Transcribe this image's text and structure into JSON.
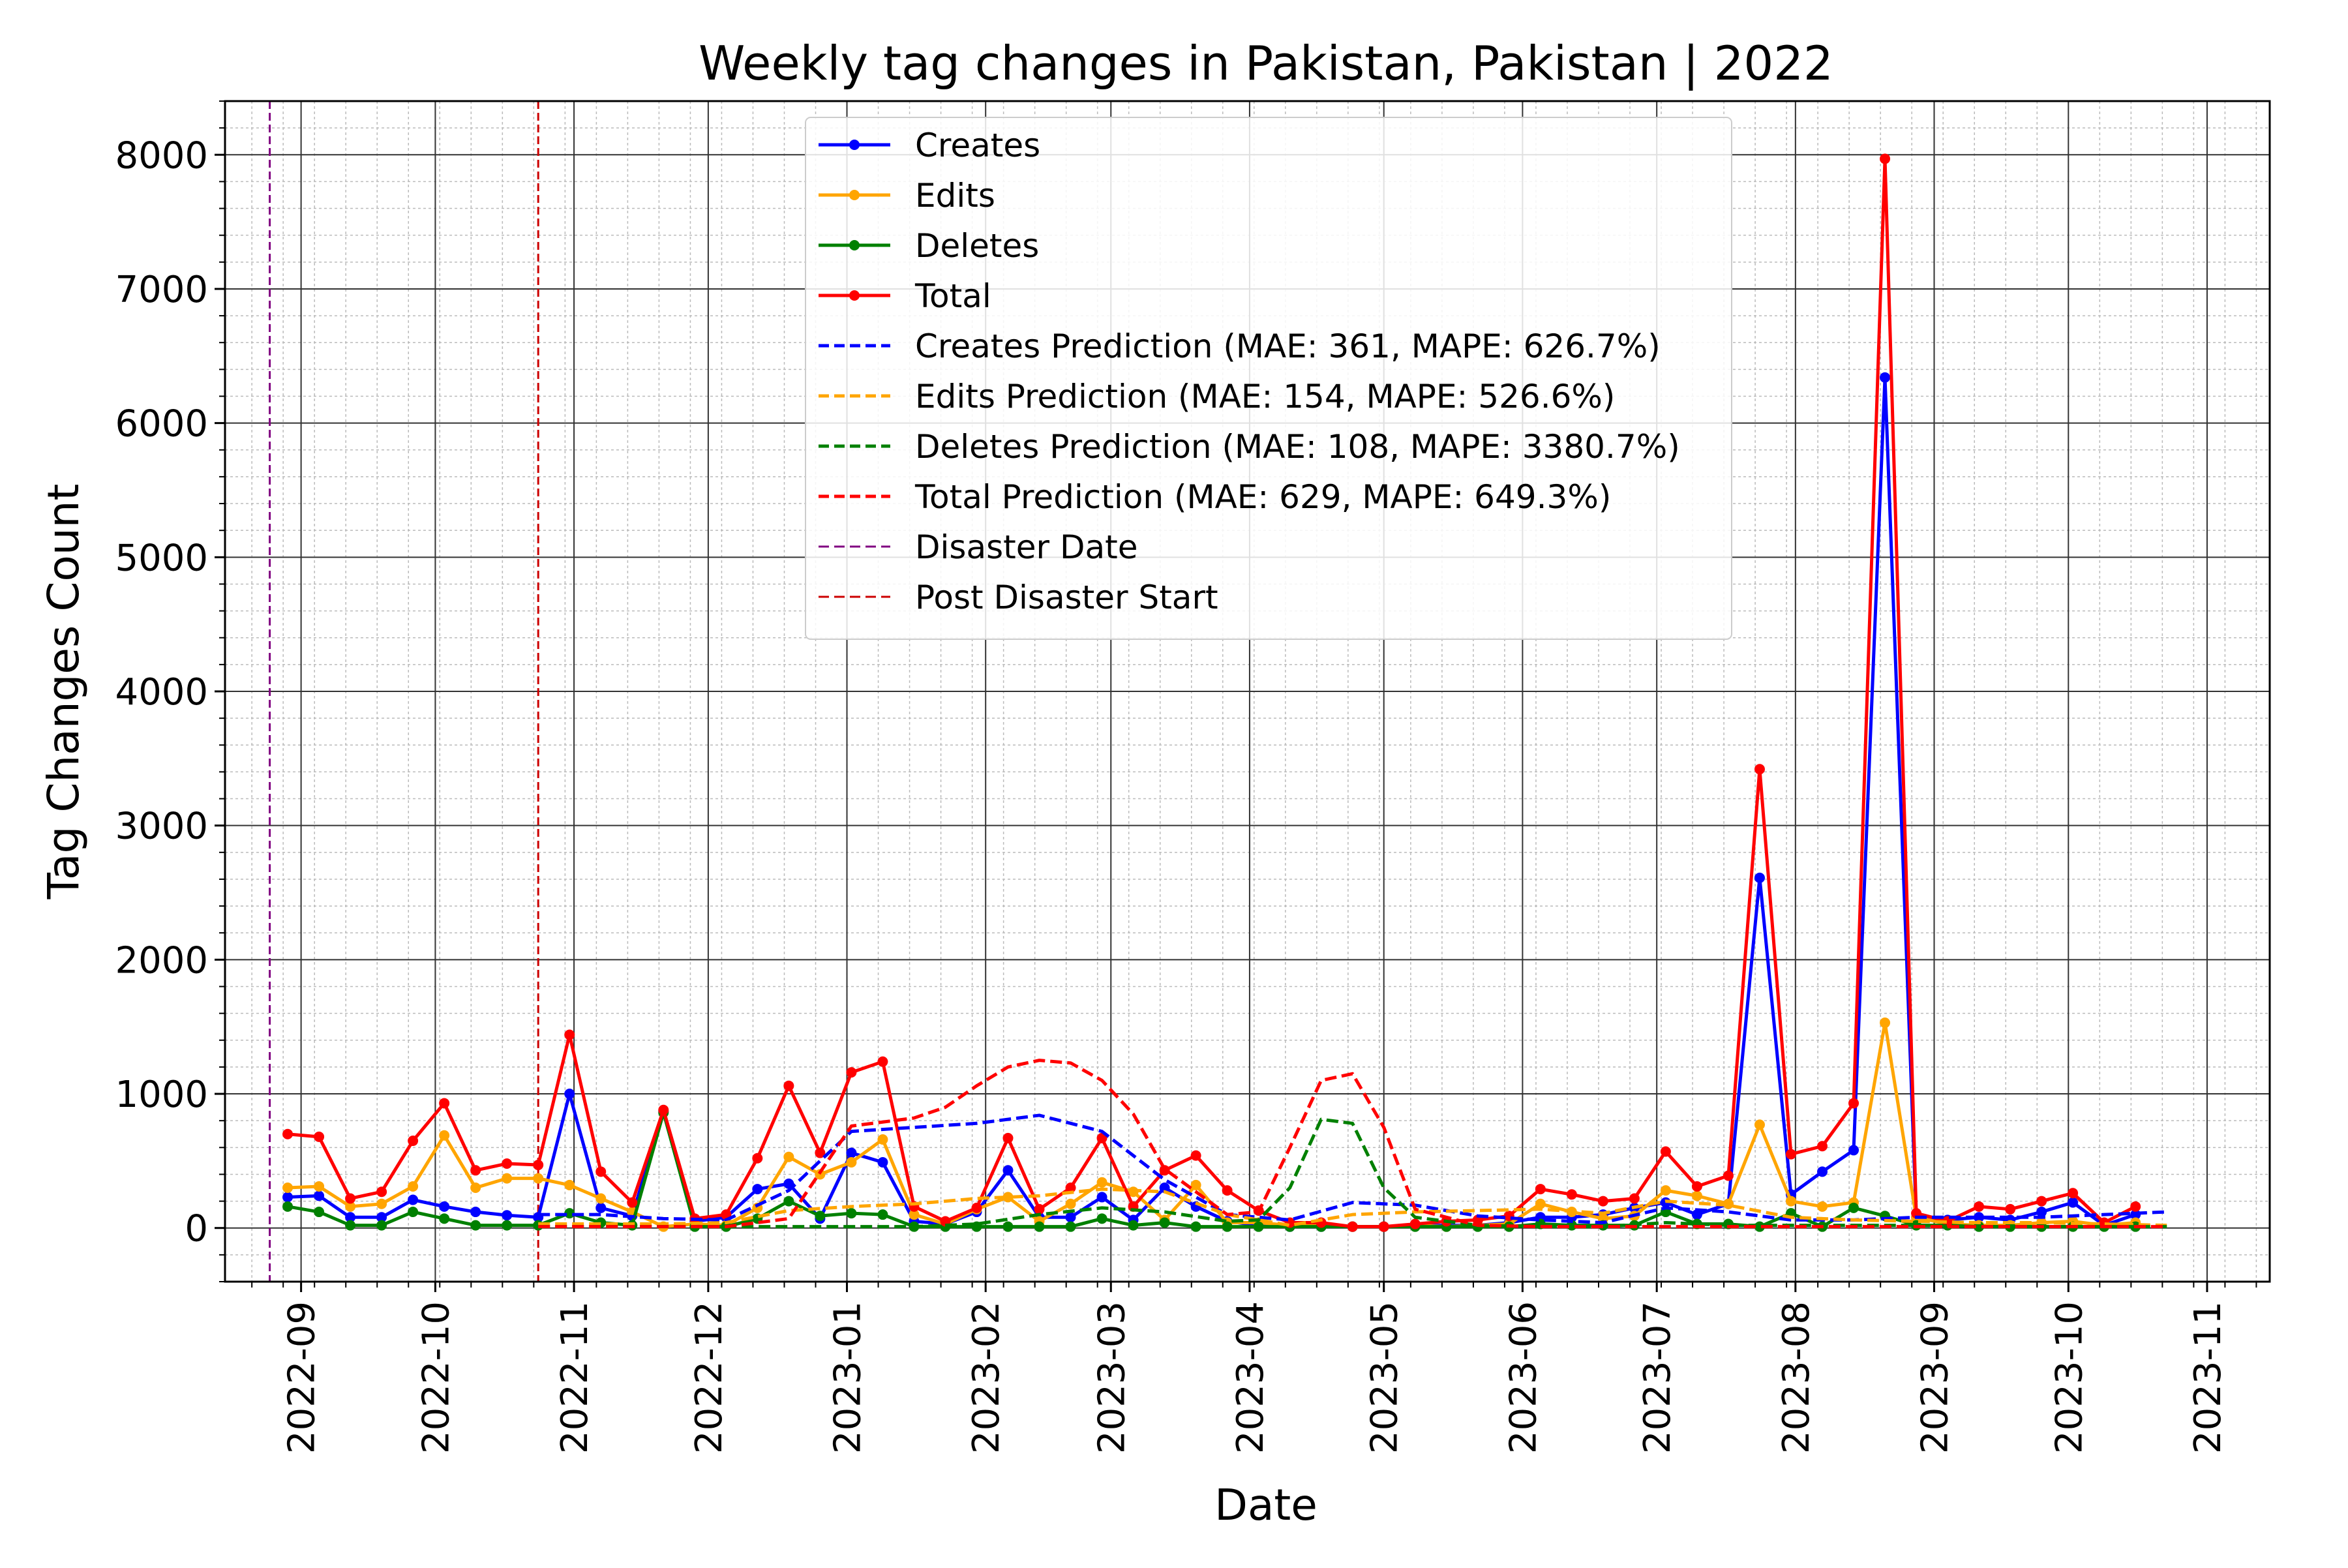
{
  "chart_data": {
    "type": "line",
    "title": "Weekly tag changes in Pakistan, Pakistan | 2022",
    "xlabel": "Date",
    "ylabel": "Tag Changes Count",
    "ylim": [
      -400,
      8400
    ],
    "xlim": [
      "2022-08-15",
      "2023-11-15"
    ],
    "x_ticks": [
      "2022-09",
      "2022-10",
      "2022-11",
      "2022-12",
      "2023-01",
      "2023-02",
      "2023-03",
      "2023-04",
      "2023-05",
      "2023-06",
      "2023-07",
      "2023-08",
      "2023-09",
      "2023-10",
      "2023-11"
    ],
    "y_ticks": [
      0,
      1000,
      2000,
      3000,
      4000,
      5000,
      6000,
      7000,
      8000
    ],
    "grid": true,
    "legend_position": "top-center",
    "dates": [
      "2022-08-29",
      "2022-09-05",
      "2022-09-12",
      "2022-09-19",
      "2022-09-26",
      "2022-10-03",
      "2022-10-10",
      "2022-10-17",
      "2022-10-24",
      "2022-10-31",
      "2022-11-07",
      "2022-11-14",
      "2022-11-21",
      "2022-11-28",
      "2022-12-05",
      "2022-12-12",
      "2022-12-19",
      "2022-12-26",
      "2023-01-02",
      "2023-01-09",
      "2023-01-16",
      "2023-01-23",
      "2023-01-30",
      "2023-02-06",
      "2023-02-13",
      "2023-02-20",
      "2023-02-27",
      "2023-03-06",
      "2023-03-13",
      "2023-03-20",
      "2023-03-27",
      "2023-04-03",
      "2023-04-10",
      "2023-04-17",
      "2023-04-24",
      "2023-05-01",
      "2023-05-08",
      "2023-05-15",
      "2023-05-22",
      "2023-05-29",
      "2023-06-05",
      "2023-06-12",
      "2023-06-19",
      "2023-06-26",
      "2023-07-03",
      "2023-07-10",
      "2023-07-17",
      "2023-07-24",
      "2023-07-31",
      "2023-08-07",
      "2023-08-14",
      "2023-08-21",
      "2023-08-28",
      "2023-09-04",
      "2023-09-11",
      "2023-09-18",
      "2023-09-25",
      "2023-10-02",
      "2023-10-09",
      "2023-10-16"
    ],
    "series": [
      {
        "name": "Creates",
        "color": "#0000ff",
        "style": "solid-marker",
        "values": [
          230,
          240,
          80,
          80,
          210,
          160,
          120,
          95,
          80,
          1000,
          150,
          90,
          870,
          50,
          80,
          290,
          330,
          70,
          560,
          490,
          50,
          30,
          120,
          430,
          80,
          80,
          230,
          60,
          300,
          160,
          50,
          20,
          10,
          10,
          10,
          10,
          20,
          20,
          20,
          40,
          80,
          80,
          100,
          150,
          190,
          100,
          180,
          2610,
          250,
          420,
          580,
          6340,
          80,
          60,
          80,
          60,
          120,
          190,
          20,
          100
        ]
      },
      {
        "name": "Edits",
        "color": "#ffa500",
        "style": "solid-marker",
        "values": [
          300,
          310,
          160,
          180,
          310,
          690,
          300,
          370,
          370,
          320,
          220,
          120,
          10,
          30,
          20,
          150,
          530,
          400,
          490,
          660,
          100,
          30,
          140,
          230,
          50,
          180,
          340,
          270,
          60,
          320,
          40,
          40,
          20,
          20,
          10,
          10,
          20,
          10,
          20,
          30,
          180,
          120,
          70,
          90,
          280,
          240,
          180,
          770,
          200,
          160,
          190,
          1530,
          80,
          30,
          20,
          20,
          40,
          50,
          20,
          40
        ]
      },
      {
        "name": "Deletes",
        "color": "#008000",
        "style": "solid-marker",
        "values": [
          160,
          120,
          20,
          20,
          120,
          70,
          20,
          20,
          20,
          110,
          40,
          20,
          860,
          10,
          10,
          70,
          200,
          90,
          110,
          100,
          10,
          10,
          10,
          10,
          10,
          10,
          70,
          20,
          40,
          10,
          10,
          10,
          10,
          10,
          10,
          10,
          10,
          10,
          10,
          10,
          30,
          20,
          20,
          20,
          120,
          30,
          30,
          10,
          110,
          10,
          150,
          90,
          20,
          20,
          10,
          10,
          10,
          10,
          10,
          10
        ]
      },
      {
        "name": "Total",
        "color": "#ff0000",
        "style": "solid-marker",
        "values": [
          700,
          680,
          220,
          270,
          650,
          930,
          430,
          480,
          470,
          1440,
          420,
          190,
          880,
          70,
          100,
          520,
          1060,
          560,
          1160,
          1240,
          160,
          50,
          150,
          670,
          140,
          300,
          670,
          160,
          430,
          540,
          280,
          130,
          40,
          40,
          10,
          10,
          30,
          50,
          60,
          90,
          290,
          250,
          200,
          220,
          570,
          310,
          390,
          3420,
          550,
          610,
          930,
          7970,
          110,
          50,
          160,
          140,
          200,
          260,
          40,
          160
        ]
      },
      {
        "name": "Creates Prediction (MAE: 361, MAPE: 626.7%)",
        "color": "#0000ff",
        "style": "dashed",
        "x": [
          "2022-10-24",
          "2022-11-07",
          "2022-11-21",
          "2022-12-05",
          "2022-12-19",
          "2023-01-02",
          "2023-01-16",
          "2023-01-30",
          "2023-02-13",
          "2023-02-27",
          "2023-03-13",
          "2023-03-27",
          "2023-04-10",
          "2023-04-24",
          "2023-05-08",
          "2023-05-22",
          "2023-06-05",
          "2023-06-19",
          "2023-07-03",
          "2023-07-17",
          "2023-07-31",
          "2023-08-14",
          "2023-08-28",
          "2023-09-11",
          "2023-09-25",
          "2023-10-09",
          "2023-10-23"
        ],
        "values": [
          100,
          100,
          70,
          60,
          280,
          720,
          750,
          780,
          840,
          720,
          360,
          100,
          60,
          190,
          170,
          90,
          60,
          40,
          150,
          120,
          60,
          60,
          80,
          80,
          80,
          100,
          120
        ]
      },
      {
        "name": "Edits Prediction (MAE: 154, MAPE: 526.6%)",
        "color": "#ffa500",
        "style": "dashed",
        "x": [
          "2022-10-24",
          "2022-11-07",
          "2022-11-21",
          "2022-12-05",
          "2022-12-19",
          "2023-01-02",
          "2023-01-16",
          "2023-01-30",
          "2023-02-13",
          "2023-02-27",
          "2023-03-13",
          "2023-03-27",
          "2023-04-10",
          "2023-04-24",
          "2023-05-08",
          "2023-05-22",
          "2023-06-05",
          "2023-06-19",
          "2023-07-03",
          "2023-07-17",
          "2023-07-31",
          "2023-08-14",
          "2023-08-28",
          "2023-09-11",
          "2023-09-25",
          "2023-10-09",
          "2023-10-23"
        ],
        "values": [
          30,
          30,
          30,
          40,
          130,
          160,
          180,
          220,
          240,
          290,
          270,
          100,
          20,
          100,
          120,
          130,
          140,
          110,
          200,
          170,
          80,
          60,
          50,
          40,
          40,
          30,
          20
        ]
      },
      {
        "name": "Deletes Prediction (MAE: 108, MAPE: 3380.7%)",
        "color": "#008000",
        "style": "dashed",
        "x": [
          "2022-10-24",
          "2022-11-07",
          "2022-11-21",
          "2022-12-05",
          "2022-12-19",
          "2023-01-02",
          "2023-01-16",
          "2023-01-30",
          "2023-02-13",
          "2023-02-27",
          "2023-03-13",
          "2023-03-27",
          "2023-04-03",
          "2023-04-10",
          "2023-04-17",
          "2023-04-24",
          "2023-05-01",
          "2023-05-08",
          "2023-05-22",
          "2023-06-05",
          "2023-06-19",
          "2023-07-03",
          "2023-07-17",
          "2023-07-31",
          "2023-08-14",
          "2023-08-28",
          "2023-09-11",
          "2023-10-09",
          "2023-10-23"
        ],
        "values": [
          10,
          10,
          10,
          10,
          10,
          10,
          10,
          30,
          100,
          150,
          120,
          50,
          60,
          300,
          810,
          780,
          300,
          80,
          20,
          10,
          10,
          40,
          20,
          20,
          20,
          20,
          10,
          10,
          10
        ]
      },
      {
        "name": "Total Prediction (MAE: 629, MAPE: 649.3%)",
        "color": "#ff0000",
        "style": "dashed",
        "x": [
          "2022-10-24",
          "2022-11-07",
          "2022-11-21",
          "2022-12-05",
          "2022-12-19",
          "2023-01-02",
          "2023-01-16",
          "2023-01-23",
          "2023-01-30",
          "2023-02-06",
          "2023-02-13",
          "2023-02-20",
          "2023-02-27",
          "2023-03-06",
          "2023-03-13",
          "2023-03-27",
          "2023-04-03",
          "2023-04-10",
          "2023-04-17",
          "2023-04-24",
          "2023-05-01",
          "2023-05-08",
          "2023-05-22",
          "2023-06-05",
          "2023-06-19",
          "2023-07-03",
          "2023-07-17",
          "2023-07-31",
          "2023-08-14",
          "2023-08-28",
          "2023-09-11",
          "2023-10-09",
          "2023-10-23"
        ],
        "values": [
          10,
          10,
          10,
          10,
          70,
          760,
          820,
          900,
          1060,
          1200,
          1250,
          1230,
          1100,
          850,
          440,
          100,
          120,
          600,
          1100,
          1150,
          750,
          140,
          20,
          10,
          10,
          10,
          10,
          10,
          10,
          10,
          10,
          10,
          10
        ]
      }
    ],
    "vlines": [
      {
        "name": "Disaster Date",
        "x": "2022-08-25",
        "color": "#800080"
      },
      {
        "name": "Post Disaster Start",
        "x": "2022-10-24",
        "color": "#cc0000"
      }
    ]
  }
}
